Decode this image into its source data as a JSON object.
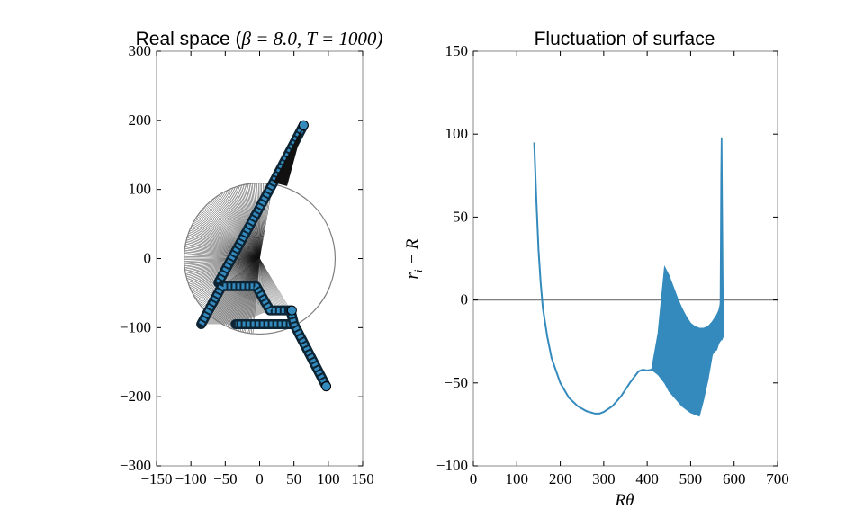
{
  "chart_data": [
    {
      "type": "line",
      "title": {
        "text": "Real space (",
        "beta_symbol": "β",
        "beta_value": " = 8.0, ",
        "t_symbol": "T",
        "t_value": " = 1000)"
      },
      "xlim": [
        -150,
        150
      ],
      "ylim": [
        -300,
        300
      ],
      "xticks": [
        -150,
        -100,
        -50,
        0,
        50,
        100,
        150
      ],
      "yticks": [
        -300,
        -200,
        -100,
        0,
        100,
        200,
        300
      ],
      "xtick_labels": [
        "−150",
        "−100",
        "−50",
        "0",
        "50",
        "100",
        "150"
      ],
      "ytick_labels": [
        "−300",
        "−200",
        "−100",
        "0",
        "100",
        "200",
        "300"
      ],
      "reference_circle": {
        "cx": 0,
        "cy": 0,
        "r": 110,
        "color": "#808080"
      },
      "filaments": [
        {
          "name": "upper",
          "points": [
            [
              -60,
              -35
            ],
            [
              20,
              110
            ],
            [
              64,
              193
            ]
          ],
          "fan_center": [
            0,
            0
          ]
        },
        {
          "name": "middle",
          "points": [
            [
              -85,
              -95
            ],
            [
              -55,
              -40
            ],
            [
              -5,
              -40
            ],
            [
              15,
              -75
            ],
            [
              45,
              -75
            ],
            [
              50,
              -95
            ],
            [
              -35,
              -95
            ]
          ]
        },
        {
          "name": "lower",
          "points": [
            [
              45,
              -75
            ],
            [
              50,
              -95
            ],
            [
              97,
              -185
            ]
          ]
        }
      ],
      "marker_color": "#348abd",
      "series": [
        {
          "values_x": [
            -60,
            20,
            64
          ],
          "values_y": [
            -35,
            110,
            193
          ]
        }
      ]
    },
    {
      "type": "line",
      "title": "Fluctuation of surface",
      "xlabel": "Rθ",
      "ylabel": "r_i − R",
      "ylabel_parts": {
        "r": "r",
        "i": "i",
        "rest": " − R"
      },
      "xlim": [
        0,
        700
      ],
      "ylim": [
        -100,
        150
      ],
      "xticks": [
        0,
        100,
        200,
        300,
        400,
        500,
        600,
        700
      ],
      "yticks": [
        -100,
        -50,
        0,
        50,
        100,
        150
      ],
      "xtick_labels": [
        "0",
        "100",
        "200",
        "300",
        "400",
        "500",
        "600",
        "700"
      ],
      "ytick_labels": [
        "−100",
        "−50",
        "0",
        "50",
        "100",
        "150"
      ],
      "zero_line_color": "#808080",
      "color": "#348abd",
      "series": [
        {
          "x": [
            140,
            145,
            150,
            155,
            160,
            170,
            180,
            200,
            220,
            240,
            260,
            280,
            290,
            300,
            320,
            340,
            360,
            380,
            390,
            400,
            410
          ],
          "y": [
            95,
            60,
            30,
            10,
            -5,
            -22,
            -35,
            -50,
            -59,
            -64,
            -67,
            -68.5,
            -68.5,
            -67.5,
            -64,
            -58,
            -50,
            -43,
            -42,
            -42.5,
            -42
          ]
        }
      ],
      "band": {
        "x": [
          410,
          425,
          440,
          450,
          460,
          470,
          480,
          490,
          500,
          510,
          520,
          530,
          540,
          550,
          555,
          560,
          565,
          570,
          572,
          575
        ],
        "upper": [
          -42,
          -20,
          20,
          15,
          8,
          1,
          -5,
          -10,
          -14,
          -16,
          -17,
          -17,
          -16,
          -13,
          -11,
          -9,
          -6,
          0,
          98,
          -5
        ],
        "lower": [
          -42,
          -45,
          -50,
          -55,
          -58,
          -61,
          -64,
          -66,
          -68,
          -69,
          -70,
          -60,
          -48,
          -33,
          -31,
          -30,
          -26,
          -24,
          -24,
          -22
        ]
      }
    }
  ]
}
